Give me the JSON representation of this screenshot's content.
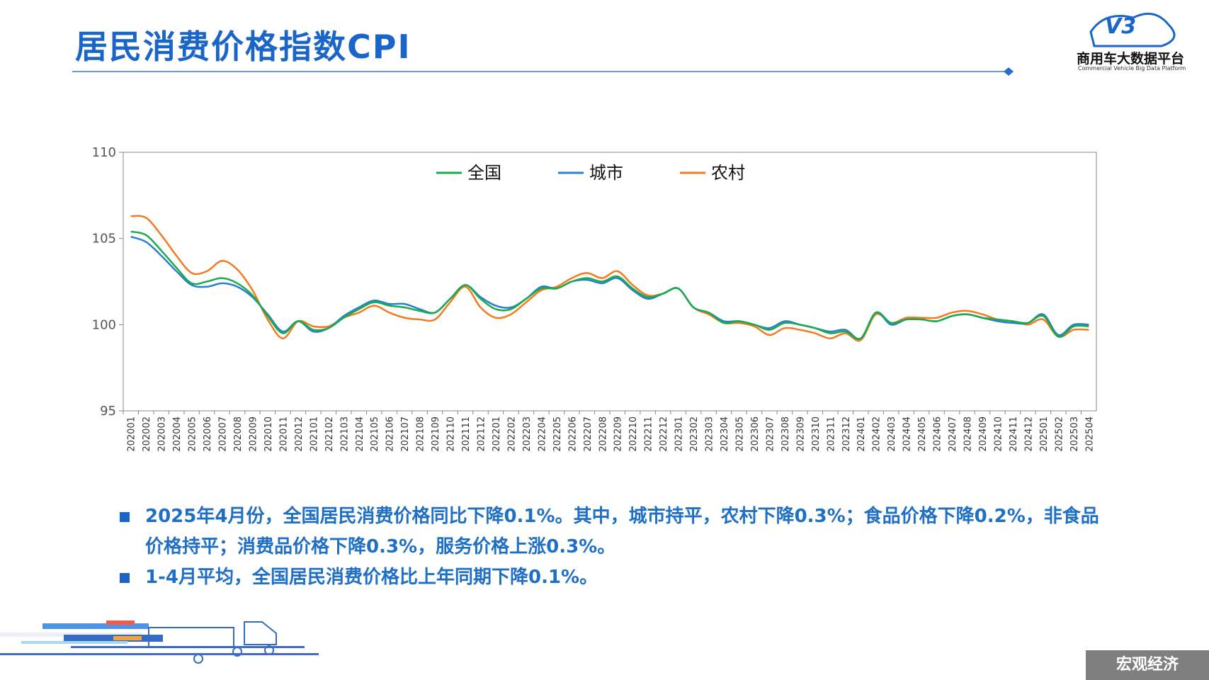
{
  "header": {
    "title": "居民消费价格指数CPI"
  },
  "logo": {
    "mark": "V3",
    "name": "商用车大数据平台",
    "subtitle": "Commercial Vehicle Big Data Platform"
  },
  "chart_data": {
    "type": "line",
    "categories": [
      "202001",
      "202002",
      "202003",
      "202004",
      "202005",
      "202006",
      "202007",
      "202008",
      "202009",
      "202010",
      "202011",
      "202012",
      "202101",
      "202102",
      "202103",
      "202104",
      "202105",
      "202106",
      "202107",
      "202108",
      "202109",
      "202110",
      "202111",
      "202112",
      "202201",
      "202202",
      "202203",
      "202204",
      "202205",
      "202206",
      "202207",
      "202208",
      "202209",
      "202210",
      "202211",
      "202212",
      "202301",
      "202302",
      "202303",
      "202304",
      "202305",
      "202306",
      "202307",
      "202308",
      "202309",
      "202310",
      "202311",
      "202312",
      "202401",
      "202402",
      "202403",
      "202404",
      "202405",
      "202406",
      "202407",
      "202408",
      "202409",
      "202410",
      "202411",
      "202412",
      "202501",
      "202502",
      "202503",
      "202504"
    ],
    "series": [
      {
        "name": "全国",
        "color": "#1aab4a",
        "values": [
          105.4,
          105.2,
          104.3,
          103.3,
          102.4,
          102.5,
          102.7,
          102.4,
          101.7,
          100.5,
          99.5,
          100.2,
          99.7,
          99.8,
          100.4,
          100.9,
          101.3,
          101.1,
          101.0,
          100.8,
          100.7,
          101.5,
          102.3,
          101.5,
          100.9,
          100.9,
          101.5,
          102.1,
          102.1,
          102.5,
          102.7,
          102.5,
          102.8,
          102.1,
          101.6,
          101.8,
          102.1,
          101.0,
          100.7,
          100.1,
          100.2,
          100.0,
          99.7,
          100.1,
          100.0,
          99.8,
          99.5,
          99.6,
          99.2,
          100.7,
          100.1,
          100.3,
          100.3,
          100.2,
          100.5,
          100.6,
          100.4,
          100.3,
          100.2,
          100.1,
          100.5,
          99.3,
          99.9,
          99.9
        ]
      },
      {
        "name": "城市",
        "color": "#2a7fd0",
        "values": [
          105.1,
          104.8,
          104.0,
          103.1,
          102.3,
          102.2,
          102.4,
          102.2,
          101.6,
          100.6,
          99.6,
          100.2,
          99.6,
          99.8,
          100.5,
          101.0,
          101.4,
          101.2,
          101.2,
          100.9,
          100.7,
          101.5,
          102.3,
          101.6,
          101.1,
          101.0,
          101.5,
          102.2,
          102.1,
          102.5,
          102.6,
          102.4,
          102.7,
          102.0,
          101.5,
          101.8,
          102.1,
          101.0,
          100.7,
          100.2,
          100.2,
          100.0,
          99.8,
          100.2,
          100.0,
          99.8,
          99.6,
          99.7,
          99.2,
          100.7,
          100.0,
          100.3,
          100.3,
          100.2,
          100.5,
          100.6,
          100.4,
          100.2,
          100.1,
          100.1,
          100.6,
          99.4,
          100.0,
          100.0
        ]
      },
      {
        "name": "农村",
        "color": "#f47a20",
        "values": [
          106.3,
          106.2,
          105.2,
          104.0,
          103.0,
          103.1,
          103.7,
          103.2,
          102.0,
          100.3,
          99.2,
          100.2,
          99.9,
          99.9,
          100.4,
          100.7,
          101.1,
          100.7,
          100.4,
          100.3,
          100.3,
          101.3,
          102.2,
          101.0,
          100.4,
          100.6,
          101.3,
          102.0,
          102.2,
          102.7,
          103.0,
          102.7,
          103.1,
          102.3,
          101.7,
          101.8,
          102.1,
          101.0,
          100.6,
          100.1,
          100.1,
          99.9,
          99.4,
          99.8,
          99.7,
          99.5,
          99.2,
          99.5,
          99.1,
          100.6,
          100.1,
          100.4,
          100.4,
          100.4,
          100.7,
          100.8,
          100.6,
          100.3,
          100.2,
          100.0,
          100.3,
          99.3,
          99.7,
          99.7
        ]
      }
    ],
    "ylim": [
      95,
      110
    ],
    "yticks": [
      95,
      100,
      105,
      110
    ],
    "grid": false,
    "legend": "top"
  },
  "notes": [
    "2025年4月份，全国居民消费价格同比下降0.1%。其中，城市持平，农村下降0.3%；食品价格下降0.2%，非食品价格持平；消费品价格下降0.3%，服务价格上涨0.3%。",
    "1-4月平均，全国居民消费价格比上年同期下降0.1%。"
  ],
  "footer": {
    "tag": "宏观经济"
  }
}
